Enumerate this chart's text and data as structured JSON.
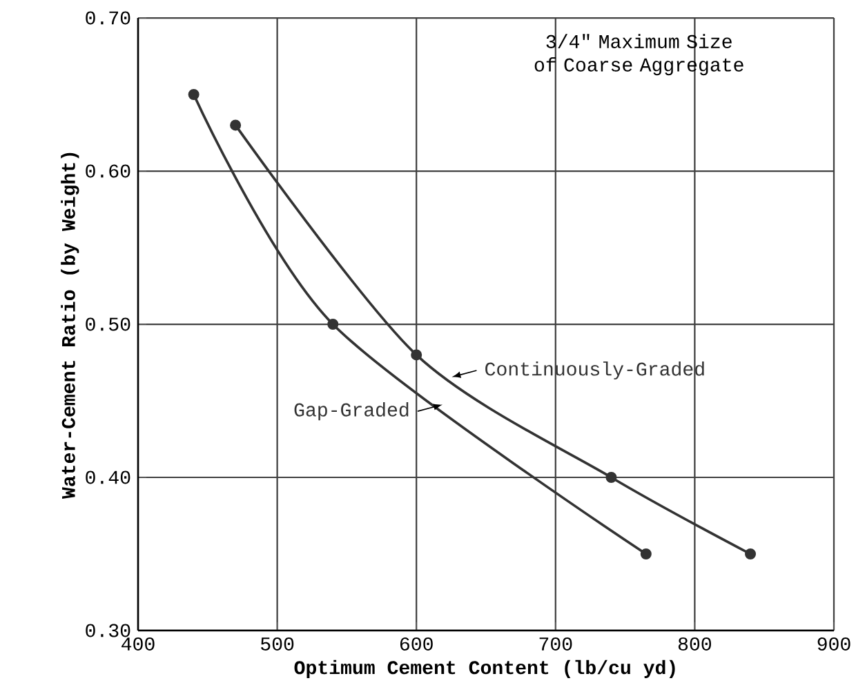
{
  "chart_data": {
    "type": "line",
    "xlabel": "Optimum Cement Content (lb/cu yd)",
    "ylabel": "Water-Cement Ratio (by Weight)",
    "annotations": [
      "3/4\" Maximum Size of Coarse Aggregate"
    ],
    "series": [
      {
        "name": "Continuously-Graded",
        "color": "#333333",
        "x": [
          470,
          600,
          740,
          840
        ],
        "values": [
          0.63,
          0.48,
          0.4,
          0.35
        ]
      },
      {
        "name": "Gap-Graded",
        "color": "#333333",
        "x": [
          440,
          540,
          765
        ],
        "values": [
          0.65,
          0.5,
          0.35
        ]
      }
    ],
    "xlim": [
      400,
      900
    ],
    "xticks": [
      400,
      500,
      600,
      700,
      800,
      900
    ],
    "ylim": [
      0.3,
      0.7
    ],
    "yticks": [
      {
        "value": 0.3,
        "label": "0.30"
      },
      {
        "value": 0.4,
        "label": "0.40"
      },
      {
        "value": 0.5,
        "label": "0.50"
      },
      {
        "value": 0.6,
        "label": "0.60"
      },
      {
        "value": 0.7,
        "label": "0.70"
      }
    ],
    "grid": true,
    "marker": "circle",
    "line_style": "solid"
  }
}
